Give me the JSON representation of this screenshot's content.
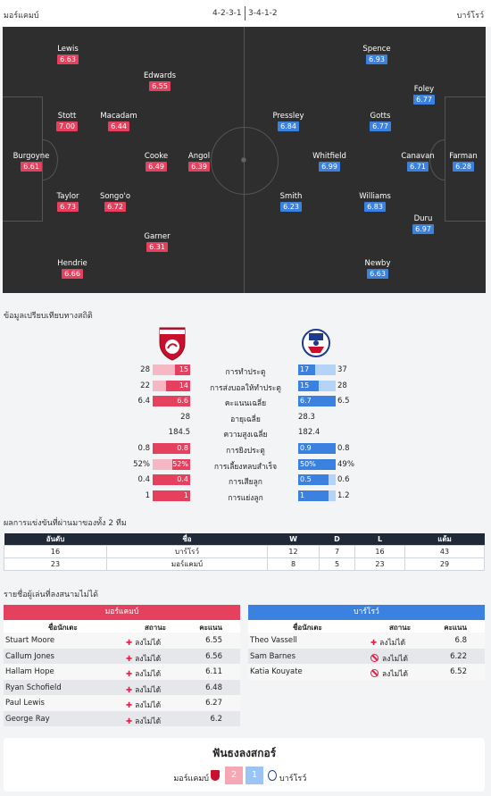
{
  "header": {
    "home": "มอร์แคมบ์",
    "formation_home": "4-2-3-1",
    "formation_away": "3-4-1-2",
    "away": "บาร์โรว์"
  },
  "home_players": [
    {
      "name": "Lewis",
      "rating": "6.63"
    },
    {
      "name": "Edwards",
      "rating": "6.55"
    },
    {
      "name": "Stott",
      "rating": "7.00"
    },
    {
      "name": "Macadam",
      "rating": "6.44"
    },
    {
      "name": "Burgoyne",
      "rating": "6.61"
    },
    {
      "name": "Cooke",
      "rating": "6.49"
    },
    {
      "name": "Angol",
      "rating": "6.39"
    },
    {
      "name": "Taylor",
      "rating": "6.73"
    },
    {
      "name": "Songo'o",
      "rating": "6.72"
    },
    {
      "name": "Garner",
      "rating": "6.31"
    },
    {
      "name": "Hendrie",
      "rating": "6.66"
    }
  ],
  "away_players": [
    {
      "name": "Spence",
      "rating": "6.93"
    },
    {
      "name": "Foley",
      "rating": "6.77"
    },
    {
      "name": "Pressley",
      "rating": "6.84"
    },
    {
      "name": "Gotts",
      "rating": "6.77"
    },
    {
      "name": "Whitfield",
      "rating": "6.99"
    },
    {
      "name": "Canavan",
      "rating": "6.71"
    },
    {
      "name": "Farman",
      "rating": "6.28"
    },
    {
      "name": "Smith",
      "rating": "6.23"
    },
    {
      "name": "Williams",
      "rating": "6.83"
    },
    {
      "name": "Duru",
      "rating": "6.97"
    },
    {
      "name": "Newby",
      "rating": "6.63"
    }
  ],
  "stats_title": "ข้อมูลเปรียบเทียบทางสถิติ",
  "stats": [
    {
      "label": "การทำประตู",
      "lt": "28",
      "lb": "15",
      "lf": 40,
      "rb": "17",
      "rt": "37",
      "rf": 46
    },
    {
      "label": "การส่งบอลให้ทำประตู",
      "lt": "22",
      "lb": "14",
      "lf": 64,
      "rb": "15",
      "rt": "28",
      "rf": 54
    },
    {
      "label": "คะแนนเฉลี่ย",
      "lt": "6.4",
      "lb": "6.6",
      "lf": 100,
      "rb": "6.7",
      "rt": "6.5",
      "rf": 100
    },
    {
      "label": "อายุเฉลี่ย",
      "lp": "28",
      "rp": "28.3"
    },
    {
      "label": "ความสูงเฉลี่ย",
      "lp": "184.5",
      "rp": "182.4"
    },
    {
      "label": "การยิงประตู",
      "lt": "0.8",
      "lb": "0.8",
      "lf": 100,
      "rb": "0.9",
      "rt": "0.8",
      "rf": 100
    },
    {
      "label": "การเลี้ยงหลบสำเร็จ",
      "lt": "52%",
      "lb": "52%",
      "lf": 48,
      "rb": "50%",
      "rt": "49%",
      "rf": 100
    },
    {
      "label": "การเสียลูก",
      "lt": "0.4",
      "lb": "0.4",
      "lf": 100,
      "rb": "0.5",
      "rt": "0.6",
      "rf": 80
    },
    {
      "label": "การแย่งลูก",
      "lt": "1",
      "lb": "1",
      "lf": 100,
      "rb": "1",
      "rt": "1.2",
      "rf": 80
    }
  ],
  "h2h": {
    "title": "ผลการแข่งขันที่ผ่านมาของทั้ง 2 ทีม",
    "headers": [
      "อันดับ",
      "ชื่อ",
      "W",
      "D",
      "L",
      "แต้ม"
    ],
    "rows": [
      [
        "16",
        "บาร์โรว์",
        "12",
        "7",
        "16",
        "43"
      ],
      [
        "23",
        "มอร์แคมบ์",
        "8",
        "5",
        "23",
        "29"
      ]
    ]
  },
  "missing": {
    "title": "รายชื่อผู้เล่นที่ลงสนามไม่ได้",
    "home_team": "มอร์แคมบ์",
    "away_team": "บาร์โรว์",
    "col_name": "ชื่อนักเตะ",
    "col_status": "สถานะ",
    "col_rating": "คะแนน",
    "home": [
      {
        "name": "Stuart Moore",
        "status": "ลงไม่ได้",
        "rating": "6.55"
      },
      {
        "name": "Callum Jones",
        "status": "ลงไม่ได้",
        "rating": "6.56"
      },
      {
        "name": "Hallam Hope",
        "status": "ลงไม่ได้",
        "rating": "6.11"
      },
      {
        "name": "Ryan Schofield",
        "status": "ลงไม่ได้",
        "rating": "6.48"
      },
      {
        "name": "Paul Lewis",
        "status": "ลงไม่ได้",
        "rating": "6.27"
      },
      {
        "name": "George Ray",
        "status": "ลงไม่ได้",
        "rating": "6.2"
      }
    ],
    "away": [
      {
        "name": "Theo Vassell",
        "status": "ลงไม่ได้",
        "rating": "6.8",
        "icon": "injury"
      },
      {
        "name": "Sam Barnes",
        "status": "ลงไม่ได้",
        "rating": "6.22",
        "icon": "banned"
      },
      {
        "name": "Katia Kouyate",
        "status": "ลงไม่ได้",
        "rating": "6.52",
        "icon": "banned"
      }
    ]
  },
  "prediction": {
    "title": "ฟันธงลงสกอร์",
    "home": "มอร์แคมบ์",
    "home_score": "2",
    "away_score": "1",
    "away": "บาร์โรว์"
  }
}
